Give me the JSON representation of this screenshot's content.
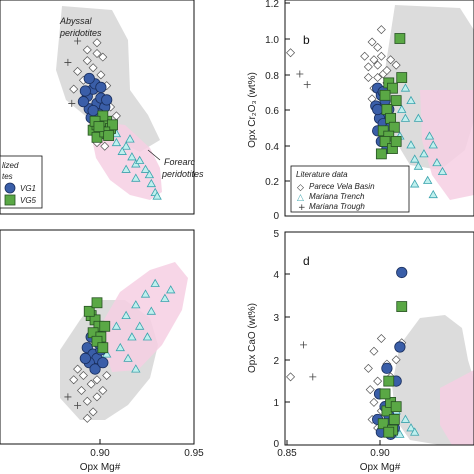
{
  "chart_data": [
    {
      "id": "a",
      "type": "scatter",
      "panel_letter": "",
      "annotations": [
        {
          "text": "Abyssal"
        },
        {
          "text": "peridotites"
        },
        {
          "text": "Forearc"
        },
        {
          "text": "peridotites"
        }
      ],
      "legend": [
        "lized",
        "tes",
        "VG1",
        "VG5"
      ],
      "series": [
        {
          "name": "WG5 (green squares)",
          "points": [
            [
              0.898,
              0.47
            ],
            [
              0.9,
              0.5
            ],
            [
              0.902,
              0.45
            ],
            [
              0.905,
              0.52
            ],
            [
              0.9,
              0.43
            ],
            [
              0.907,
              0.48
            ],
            [
              0.903,
              0.55
            ],
            [
              0.899,
              0.52
            ],
            [
              0.908,
              0.5
            ],
            [
              0.904,
              0.46
            ],
            [
              0.906,
              0.44
            ],
            [
              0.901,
              0.49
            ]
          ]
        },
        {
          "name": "WG1 (blue circles)",
          "points": [
            [
              0.9,
              0.62
            ],
            [
              0.895,
              0.66
            ],
            [
              0.898,
              0.7
            ],
            [
              0.902,
              0.65
            ],
            [
              0.896,
              0.59
            ],
            [
              0.904,
              0.6
            ],
            [
              0.899,
              0.73
            ],
            [
              0.893,
              0.63
            ],
            [
              0.901,
              0.56
            ],
            [
              0.897,
              0.54
            ],
            [
              0.905,
              0.64
            ],
            [
              0.894,
              0.69
            ],
            [
              0.902,
              0.71
            ],
            [
              0.898,
              0.58
            ],
            [
              0.896,
              0.76
            ]
          ]
        },
        {
          "name": "Mariana Trench",
          "points": [
            [
              0.905,
              0.5
            ],
            [
              0.91,
              0.45
            ],
            [
              0.915,
              0.38
            ],
            [
              0.918,
              0.32
            ],
            [
              0.92,
              0.28
            ],
            [
              0.925,
              0.25
            ],
            [
              0.92,
              0.2
            ],
            [
              0.928,
              0.17
            ],
            [
              0.93,
              0.12
            ],
            [
              0.915,
              0.25
            ],
            [
              0.91,
              0.4
            ],
            [
              0.913,
              0.35
            ],
            [
              0.922,
              0.3
            ],
            [
              0.927,
              0.22
            ],
            [
              0.931,
              0.1
            ],
            [
              0.917,
              0.42
            ]
          ]
        },
        {
          "name": "Parece Vela Basin",
          "points": [
            [
              0.89,
              0.8
            ],
            [
              0.895,
              0.86
            ],
            [
              0.9,
              0.9
            ],
            [
              0.893,
              0.75
            ],
            [
              0.898,
              0.82
            ],
            [
              0.902,
              0.78
            ],
            [
              0.905,
              0.72
            ],
            [
              0.888,
              0.7
            ],
            [
              0.895,
              0.92
            ],
            [
              0.9,
              0.96
            ],
            [
              0.903,
              0.88
            ],
            [
              0.907,
              0.6
            ],
            [
              0.91,
              0.55
            ],
            [
              0.9,
              0.4
            ],
            [
              0.904,
              0.38
            ]
          ]
        },
        {
          "name": "Mariana Trough",
          "points": [
            [
              0.885,
              0.85
            ],
            [
              0.89,
              0.97
            ],
            [
              0.887,
              0.62
            ]
          ]
        }
      ]
    },
    {
      "id": "b",
      "type": "scatter",
      "panel_letter": "b",
      "ylabel": "Opx Cr₂O₃ (wt%)",
      "xlim": [
        0.85,
        0.95
      ],
      "ylim": [
        0,
        1.2
      ],
      "yticks": [
        "0",
        "0.2",
        "0.4",
        "0.6",
        "0.8",
        "1.0",
        "1.2"
      ],
      "legend_title": "Literature data",
      "legend": [
        "Parece Vela Basin",
        "Mariana Trench",
        "Mariana Trough"
      ],
      "series": [
        {
          "name": "Parece Vela Basin",
          "points": [
            [
              0.853,
              0.92
            ],
            [
              0.898,
              0.88
            ],
            [
              0.9,
              0.85
            ],
            [
              0.903,
              0.8
            ],
            [
              0.905,
              0.82
            ],
            [
              0.9,
              0.95
            ],
            [
              0.902,
              1.05
            ],
            [
              0.895,
              0.78
            ],
            [
              0.898,
              0.72
            ],
            [
              0.897,
              0.66
            ],
            [
              0.905,
              0.75
            ],
            [
              0.91,
              0.85
            ],
            [
              0.893,
              0.9
            ],
            [
              0.9,
              0.78
            ],
            [
              0.907,
              0.88
            ],
            [
              0.897,
              0.98
            ],
            [
              0.902,
              0.9
            ],
            [
              0.895,
              0.84
            ]
          ]
        },
        {
          "name": "Mariana Trench",
          "points": [
            [
              0.908,
              0.5
            ],
            [
              0.912,
              0.45
            ],
            [
              0.918,
              0.4
            ],
            [
              0.915,
              0.55
            ],
            [
              0.92,
              0.32
            ],
            [
              0.922,
              0.28
            ],
            [
              0.925,
              0.35
            ],
            [
              0.91,
              0.42
            ],
            [
              0.913,
              0.6
            ],
            [
              0.918,
              0.65
            ],
            [
              0.922,
              0.55
            ],
            [
              0.928,
              0.45
            ],
            [
              0.93,
              0.4
            ],
            [
              0.932,
              0.3
            ],
            [
              0.927,
              0.2
            ],
            [
              0.92,
              0.18
            ],
            [
              0.935,
              0.25
            ],
            [
              0.93,
              0.12
            ],
            [
              0.915,
              0.72
            ]
          ]
        },
        {
          "name": "Mariana Trough",
          "points": [
            [
              0.858,
              0.8
            ],
            [
              0.862,
              0.74
            ]
          ]
        },
        {
          "name": "WG1 (blue circles)",
          "points": [
            [
              0.9,
              0.72
            ],
            [
              0.902,
              0.68
            ],
            [
              0.904,
              0.65
            ],
            [
              0.899,
              0.62
            ],
            [
              0.905,
              0.58
            ],
            [
              0.901,
              0.55
            ],
            [
              0.903,
              0.52
            ],
            [
              0.906,
              0.6
            ],
            [
              0.9,
              0.48
            ],
            [
              0.904,
              0.45
            ],
            [
              0.907,
              0.5
            ],
            [
              0.902,
              0.42
            ],
            [
              0.905,
              0.38
            ],
            [
              0.9,
              0.6
            ],
            [
              0.903,
              0.7
            ]
          ]
        },
        {
          "name": "WG5 (green squares)",
          "points": [
            [
              0.906,
              0.75
            ],
            [
              0.908,
              0.72
            ],
            [
              0.904,
              0.68
            ],
            [
              0.91,
              0.65
            ],
            [
              0.905,
              0.6
            ],
            [
              0.907,
              0.55
            ],
            [
              0.909,
              0.5
            ],
            [
              0.903,
              0.48
            ],
            [
              0.906,
              0.45
            ],
            [
              0.904,
              0.42
            ],
            [
              0.908,
              0.38
            ],
            [
              0.902,
              0.35
            ],
            [
              0.91,
              0.42
            ],
            [
              0.912,
              1.0
            ],
            [
              0.913,
              0.78
            ]
          ]
        }
      ]
    },
    {
      "id": "c",
      "type": "scatter",
      "panel_letter": "",
      "xlabel": "Opx Mg#",
      "xlim": [
        0.85,
        0.95
      ],
      "xticks": [
        "0.90",
        "0.95"
      ],
      "series": [
        {
          "name": "WG5 (green squares)",
          "points": [
            [
              0.897,
              0.6
            ],
            [
              0.899,
              0.58
            ],
            [
              0.901,
              0.55
            ],
            [
              0.898,
              0.52
            ],
            [
              0.902,
              0.5
            ],
            [
              0.9,
              0.48
            ],
            [
              0.904,
              0.55
            ],
            [
              0.896,
              0.62
            ],
            [
              0.9,
              0.66
            ],
            [
              0.903,
              0.45
            ]
          ]
        },
        {
          "name": "WG1 (blue circles)",
          "points": [
            [
              0.895,
              0.45
            ],
            [
              0.898,
              0.42
            ],
            [
              0.9,
              0.4
            ],
            [
              0.902,
              0.44
            ],
            [
              0.896,
              0.38
            ],
            [
              0.899,
              0.35
            ],
            [
              0.901,
              0.47
            ],
            [
              0.897,
              0.5
            ],
            [
              0.903,
              0.38
            ],
            [
              0.894,
              0.4
            ],
            [
              0.9,
              0.52
            ]
          ]
        },
        {
          "name": "Mariana Trench",
          "points": [
            [
              0.91,
              0.55
            ],
            [
              0.915,
              0.6
            ],
            [
              0.92,
              0.65
            ],
            [
              0.925,
              0.7
            ],
            [
              0.918,
              0.5
            ],
            [
              0.912,
              0.45
            ],
            [
              0.922,
              0.55
            ],
            [
              0.928,
              0.62
            ],
            [
              0.93,
              0.75
            ],
            [
              0.935,
              0.68
            ],
            [
              0.938,
              0.72
            ],
            [
              0.916,
              0.4
            ],
            [
              0.92,
              0.35
            ],
            [
              0.926,
              0.5
            ],
            [
              0.905,
              0.42
            ]
          ]
        },
        {
          "name": "Parece Vela Basin",
          "points": [
            [
              0.888,
              0.3
            ],
            [
              0.892,
              0.25
            ],
            [
              0.895,
              0.2
            ],
            [
              0.9,
              0.22
            ],
            [
              0.893,
              0.32
            ],
            [
              0.897,
              0.28
            ],
            [
              0.89,
              0.35
            ],
            [
              0.903,
              0.25
            ],
            [
              0.898,
              0.15
            ],
            [
              0.895,
              0.12
            ],
            [
              0.9,
              0.3
            ],
            [
              0.905,
              0.32
            ]
          ]
        },
        {
          "name": "Mariana Trough",
          "points": [
            [
              0.885,
              0.22
            ],
            [
              0.89,
              0.18
            ]
          ]
        }
      ]
    },
    {
      "id": "d",
      "type": "scatter",
      "panel_letter": "d",
      "ylabel": "Opx CaO (wt%)",
      "xlabel": "Opx Mg#",
      "xlim": [
        0.85,
        0.95
      ],
      "ylim": [
        0,
        5
      ],
      "xticks": [
        "0.85",
        "0.90"
      ],
      "yticks": [
        "0",
        "1",
        "2",
        "3",
        "4",
        "5"
      ],
      "series": [
        {
          "name": "Parece Vela Basin",
          "points": [
            [
              0.853,
              1.6
            ],
            [
              0.895,
              1.8
            ],
            [
              0.898,
              2.2
            ],
            [
              0.902,
              2.5
            ],
            [
              0.905,
              1.9
            ],
            [
              0.9,
              1.5
            ],
            [
              0.896,
              1.3
            ],
            [
              0.904,
              1.2
            ],
            [
              0.898,
              1.0
            ],
            [
              0.902,
              0.8
            ],
            [
              0.907,
              1.6
            ],
            [
              0.91,
              2.0
            ],
            [
              0.913,
              2.4
            ],
            [
              0.897,
              0.6
            ],
            [
              0.9,
              0.4
            ]
          ]
        },
        {
          "name": "Mariana Trough",
          "points": [
            [
              0.86,
              2.35
            ],
            [
              0.865,
              1.6
            ]
          ]
        },
        {
          "name": "Mariana Trench",
          "points": [
            [
              0.91,
              0.8
            ],
            [
              0.915,
              0.6
            ],
            [
              0.918,
              0.4
            ],
            [
              0.92,
              0.3
            ],
            [
              0.905,
              1.0
            ],
            [
              0.912,
              0.25
            ],
            [
              0.908,
              0.5
            ]
          ]
        },
        {
          "name": "WG1 (blue circles)",
          "points": [
            [
              0.903,
              0.35
            ],
            [
              0.905,
              0.45
            ],
            [
              0.9,
              0.6
            ],
            [
              0.902,
              0.3
            ],
            [
              0.906,
              0.7
            ],
            [
              0.904,
              0.9
            ],
            [
              0.908,
              0.55
            ],
            [
              0.901,
              1.2
            ],
            [
              0.91,
              1.5
            ],
            [
              0.905,
              1.8
            ],
            [
              0.912,
              2.3
            ],
            [
              0.913,
              4.05
            ],
            [
              0.907,
              0.25
            ],
            [
              0.909,
              0.4
            ]
          ]
        },
        {
          "name": "WG5 (green squares)",
          "points": [
            [
              0.905,
              0.8
            ],
            [
              0.907,
              1.0
            ],
            [
              0.904,
              1.2
            ],
            [
              0.909,
              0.6
            ],
            [
              0.906,
              1.5
            ],
            [
              0.91,
              0.9
            ],
            [
              0.903,
              0.5
            ],
            [
              0.908,
              0.35
            ],
            [
              0.906,
              0.3
            ],
            [
              0.913,
              3.25
            ]
          ]
        }
      ]
    }
  ]
}
